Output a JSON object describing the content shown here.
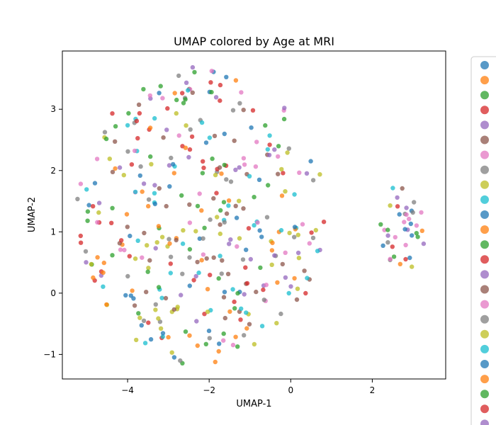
{
  "chart_data": {
    "type": "scatter",
    "title": "UMAP colored by Age at MRI",
    "xlabel": "UMAP-1",
    "ylabel": "UMAP-2",
    "xlim": [
      -5.6,
      3.8
    ],
    "ylim": [
      -1.4,
      3.95
    ],
    "xticks": [
      -4,
      -2,
      0,
      2
    ],
    "yticks": [
      -1,
      0,
      1,
      2,
      3
    ],
    "grid": false,
    "legend_position": "outside-right",
    "palette": [
      "#1f77b4",
      "#ff7f0e",
      "#2ca02c",
      "#d62728",
      "#9467bd",
      "#8c564b",
      "#e377c2",
      "#7f7f7f",
      "#bcbd22",
      "#17becf"
    ],
    "legend_entry_count": 25,
    "marker_alpha": 0.75,
    "point_count": 440
  }
}
